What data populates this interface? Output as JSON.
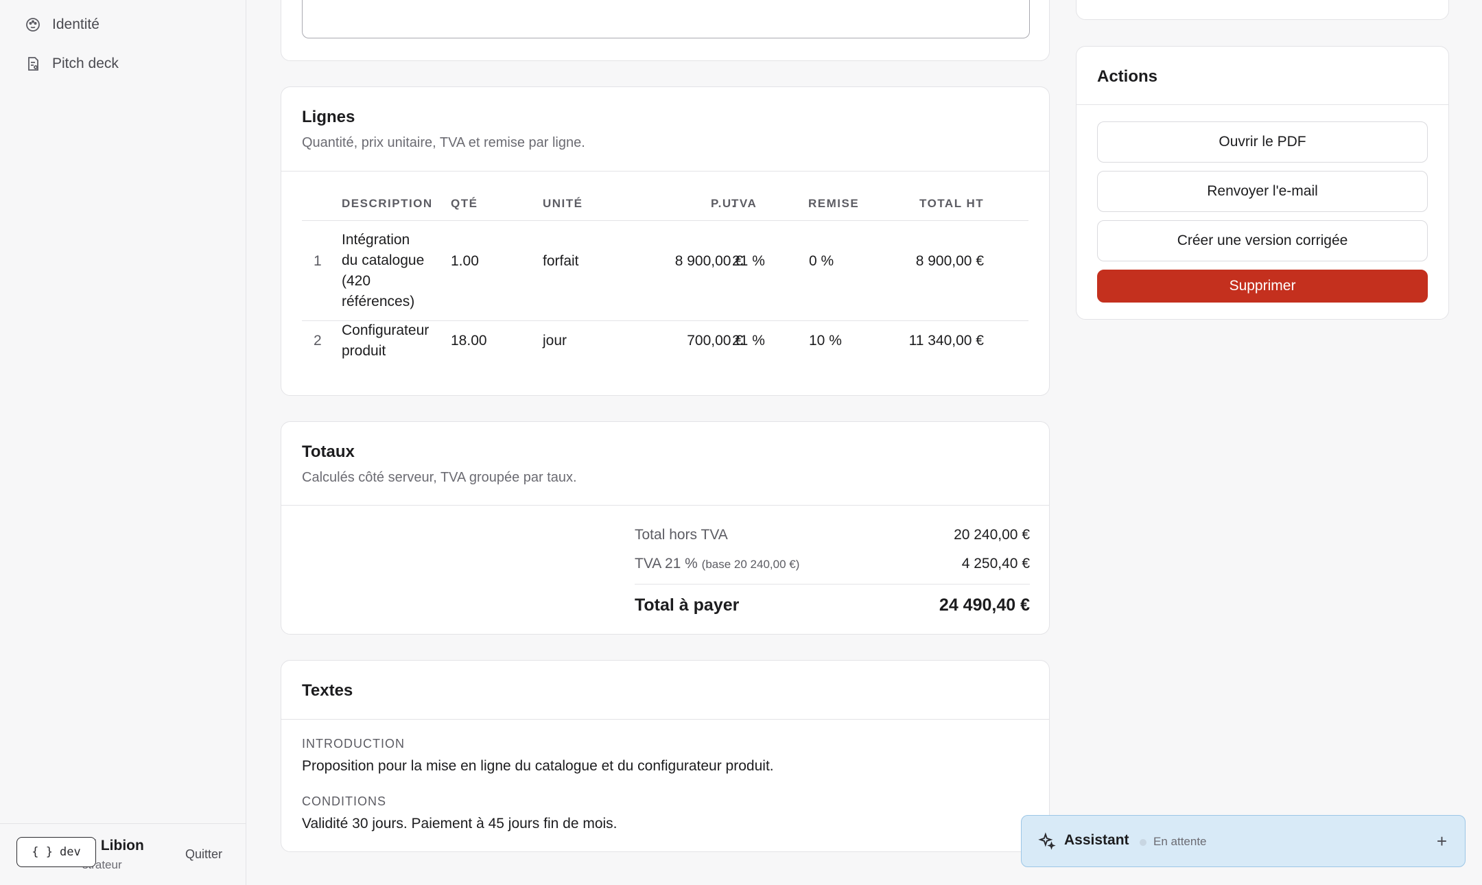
{
  "sidebar": {
    "items": [
      {
        "label": "Identité",
        "icon": "palette-icon"
      },
      {
        "label": "Pitch deck",
        "icon": "document-icon"
      }
    ],
    "user": {
      "name": "rd Libion",
      "role": "strateur"
    },
    "quit_label": "Quitter",
    "dev_label": "dev",
    "dev_icon": "{ }"
  },
  "lines_card": {
    "title": "Lignes",
    "subtitle": "Quantité, prix unitaire, TVA et remise par ligne.",
    "columns": [
      "DESCRIPTION",
      "QTÉ",
      "UNITÉ",
      "P.U.",
      "TVA",
      "REMISE",
      "TOTAL HT"
    ],
    "rows": [
      {
        "index": "1",
        "description": [
          "Intégration",
          "du catalogue",
          "(420",
          "références)"
        ],
        "qty": "1.00",
        "unit": "forfait",
        "price": "8 900,00 €",
        "vat": "21 %",
        "discount": "0 %",
        "total": "8 900,00 €"
      },
      {
        "index": "2",
        "description": [
          "Configurateur",
          "produit"
        ],
        "qty": "18.00",
        "unit": "jour",
        "price": "700,00 €",
        "vat": "21 %",
        "discount": "10 %",
        "total": "11 340,00 €"
      }
    ]
  },
  "totals_card": {
    "title": "Totaux",
    "subtitle": "Calculés côté serveur, TVA groupée par taux.",
    "subtotal_label": "Total hors TVA",
    "subtotal_value": "20 240,00 €",
    "vat_label": "TVA 21 %",
    "vat_base": "(base 20 240,00 €)",
    "vat_value": "4 250,40 €",
    "total_label": "Total à payer",
    "total_value": "24 490,40 €"
  },
  "texts_card": {
    "title": "Textes",
    "intro_label": "INTRODUCTION",
    "intro_text": "Proposition pour la mise en ligne du catalogue et du configurateur produit.",
    "conditions_label": "CONDITIONS",
    "conditions_text": "Validité 30 jours. Paiement à 45 jours fin de mois."
  },
  "actions_card": {
    "title": "Actions",
    "buttons": [
      "Ouvrir le PDF",
      "Renvoyer l'e-mail",
      "Créer une version corrigée"
    ],
    "delete_label": "Supprimer"
  },
  "assistant": {
    "title": "Assistant",
    "status": "En attente",
    "plus": "+"
  },
  "colors": {
    "danger": "#c4301e",
    "assistant_bg": "#d8eaf7"
  }
}
